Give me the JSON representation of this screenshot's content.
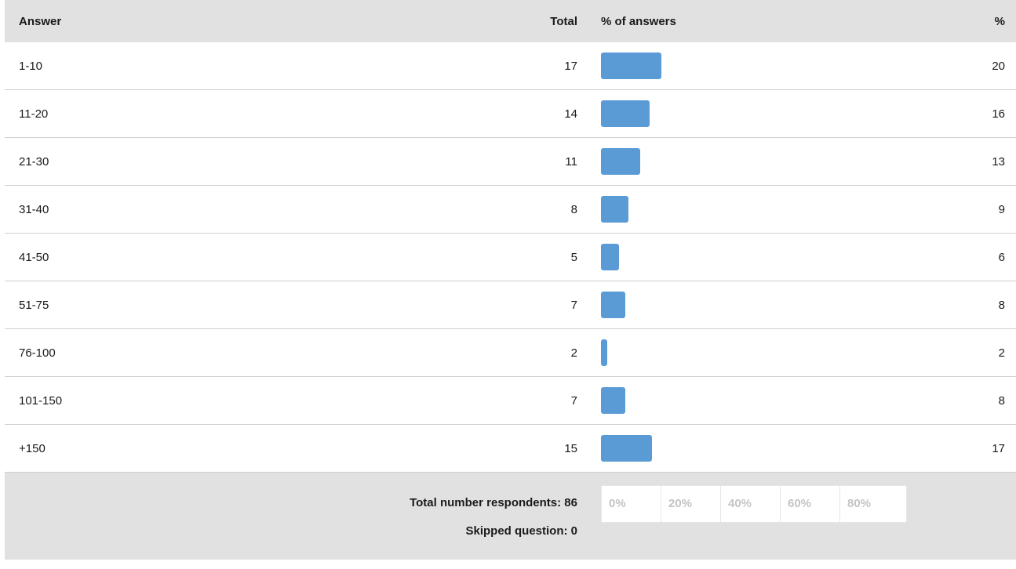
{
  "table": {
    "headers": {
      "answer": "Answer",
      "total": "Total",
      "bar": "% of answers",
      "pct": "%"
    },
    "rows": [
      {
        "answer": "1-10",
        "total": "17",
        "pct": "20"
      },
      {
        "answer": "11-20",
        "total": "14",
        "pct": "16"
      },
      {
        "answer": "21-30",
        "total": "11",
        "pct": "13"
      },
      {
        "answer": "31-40",
        "total": "8",
        "pct": "9"
      },
      {
        "answer": "41-50",
        "total": "5",
        "pct": "6"
      },
      {
        "answer": "51-75",
        "total": "7",
        "pct": "8"
      },
      {
        "answer": "76-100",
        "total": "2",
        "pct": "2"
      },
      {
        "answer": "101-150",
        "total": "7",
        "pct": "8"
      },
      {
        "answer": "+150",
        "total": "15",
        "pct": "17"
      }
    ]
  },
  "footer": {
    "respondents": "Total number respondents: 86",
    "skipped": "Skipped question: 0",
    "scale_ticks": [
      "0%",
      "20%",
      "40%",
      "60%",
      "80%"
    ]
  },
  "colors": {
    "bar": "#5b9bd5",
    "header_bg": "#e1e1e1"
  },
  "chart_data": {
    "type": "bar",
    "categories": [
      "1-10",
      "11-20",
      "21-30",
      "31-40",
      "41-50",
      "51-75",
      "76-100",
      "101-150",
      "+150"
    ],
    "series": [
      {
        "values": [
          20,
          16,
          13,
          9,
          6,
          8,
          2,
          8,
          17
        ]
      }
    ],
    "totals": [
      17,
      14,
      11,
      8,
      5,
      7,
      2,
      7,
      15
    ],
    "orientation": "horizontal",
    "xlim": [
      0,
      100
    ],
    "xticks": [
      "0%",
      "20%",
      "40%",
      "60%",
      "80%"
    ]
  }
}
